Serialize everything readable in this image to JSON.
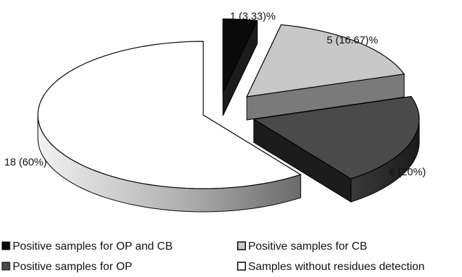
{
  "chart_data": {
    "type": "pie",
    "title": "",
    "style": "3d-exploded",
    "legend_position": "bottom",
    "slices": [
      {
        "name": "Positive samples for OP and CB",
        "value": 1,
        "percent": 3.33,
        "label": "1 (3.33)%",
        "color": "#0a0a0a"
      },
      {
        "name": "Positive samples for CB",
        "value": 5,
        "percent": 16.67,
        "label": "5 (16.67)%",
        "color": "#c8c8c8"
      },
      {
        "name": "Positive samples for OP",
        "value": 6,
        "percent": 20,
        "label": "6 (20%)",
        "color": "#4a4a4a"
      },
      {
        "name": "Samples without residues detection",
        "value": 18,
        "percent": 60,
        "label": "18 (60%)",
        "color": "#ffffff"
      }
    ],
    "legend": [
      {
        "label": "Positive samples for OP and CB",
        "color": "#0a0a0a"
      },
      {
        "label": "Positive samples for CB",
        "color": "#c8c8c8"
      },
      {
        "label": "Positive samples for OP",
        "color": "#4a4a4a"
      },
      {
        "label": "Samples without residues detection",
        "color": "#ffffff"
      }
    ]
  }
}
